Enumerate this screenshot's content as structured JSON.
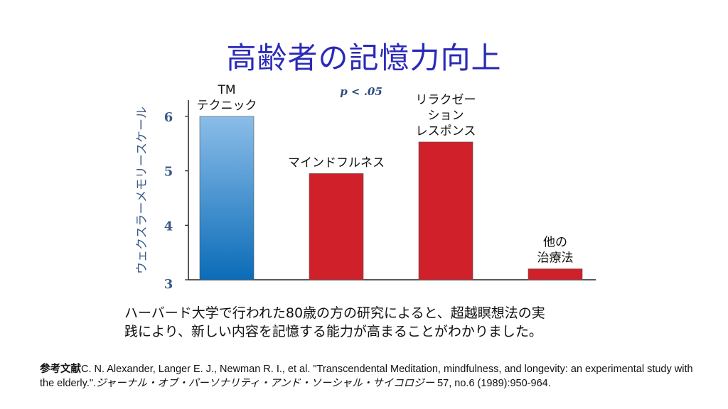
{
  "slide_title": "高齢者の記憶力向上",
  "chart_data": {
    "type": "bar",
    "categories": [
      [
        "TM",
        "テクニック"
      ],
      [
        "マインドフルネス"
      ],
      [
        "リラクゼー",
        "ション",
        "レスポンス"
      ],
      [
        "他の",
        "治療法"
      ]
    ],
    "values": [
      6.0,
      4.95,
      5.53,
      3.2
    ],
    "colors": [
      "#4a90d4",
      "#d0202a",
      "#d0202a",
      "#d0202a"
    ],
    "title": "",
    "xlabel": "",
    "ylabel": "ウェクスラーメモリースケール",
    "ylim": [
      3,
      6.3
    ],
    "yticks": [
      3,
      4,
      5,
      6
    ],
    "annotation": "p < .05",
    "grid": false
  },
  "summary": [
    "ハーバード大学で行われた80歳の方の研究によると、超越瞑想法の実",
    "践により、新しい内容を記憶する能力が高まることがわかりました。"
  ],
  "reference": {
    "label": "参考文献",
    "text": "C. N. Alexander, Langer E. J., Newman R. I., et al. \"Transcendental Meditation, mindfulness, and longevity: an experimental study with the elderly.\".",
    "journal": "ジャーナル・オブ・パーソナリティ・アンド・ソーシャル・サイコロジー",
    "tail": " 57, no.6 (1989):950-964."
  }
}
